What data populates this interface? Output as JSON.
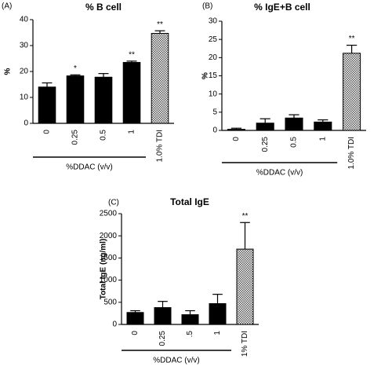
{
  "chart_data": [
    {
      "type": "bar",
      "panel_label": "(A)",
      "title": "% B cell",
      "y_label": "%",
      "categories": [
        "0",
        "0.25",
        "0.5",
        "1",
        "1.0% TDI"
      ],
      "values": [
        14,
        18.3,
        17.8,
        23.5,
        34.7
      ],
      "errors": [
        1.6,
        0.4,
        1.4,
        0.5,
        1.0
      ],
      "significance": [
        null,
        "*",
        null,
        "**",
        "**"
      ],
      "bar_styles": [
        "solid",
        "solid",
        "solid",
        "solid",
        "hatched"
      ],
      "color": "#000000",
      "group_label": "%DDAC (v/v)",
      "ylim": [
        0,
        40
      ],
      "yticks": [
        0,
        10,
        20,
        30,
        40
      ]
    },
    {
      "type": "bar",
      "panel_label": "(B)",
      "title": "% IgE+B cell",
      "y_label": "%",
      "categories": [
        "0",
        "0.25",
        "0.5",
        "1",
        "1.0% TDI"
      ],
      "values": [
        0.3,
        2.0,
        3.4,
        2.3,
        21.2
      ],
      "errors": [
        0.3,
        1.2,
        0.9,
        0.6,
        2.2
      ],
      "significance": [
        null,
        null,
        null,
        null,
        "**"
      ],
      "bar_styles": [
        "solid",
        "solid",
        "solid",
        "solid",
        "hatched"
      ],
      "color": "#000000",
      "group_label": "%DDAC (v/v)",
      "ylim": [
        0,
        30
      ],
      "yticks": [
        0,
        5,
        10,
        15,
        20,
        25,
        30
      ]
    },
    {
      "type": "bar",
      "panel_label": "(C)",
      "title": "Total IgE",
      "y_label": "Total IgE (ng/ml)",
      "categories": [
        "0",
        "0.25",
        ".5",
        "1",
        "1% TDI"
      ],
      "values": [
        270,
        380,
        220,
        470,
        1700
      ],
      "errors": [
        40,
        140,
        90,
        210,
        600
      ],
      "significance": [
        null,
        null,
        null,
        null,
        "**"
      ],
      "bar_styles": [
        "solid",
        "solid",
        "solid",
        "solid",
        "hatched"
      ],
      "color": "#000000",
      "group_label": "%DDAC (v/v)",
      "ylim": [
        0,
        2500
      ],
      "yticks": [
        0,
        500,
        1000,
        1500,
        2000,
        2500
      ]
    }
  ]
}
